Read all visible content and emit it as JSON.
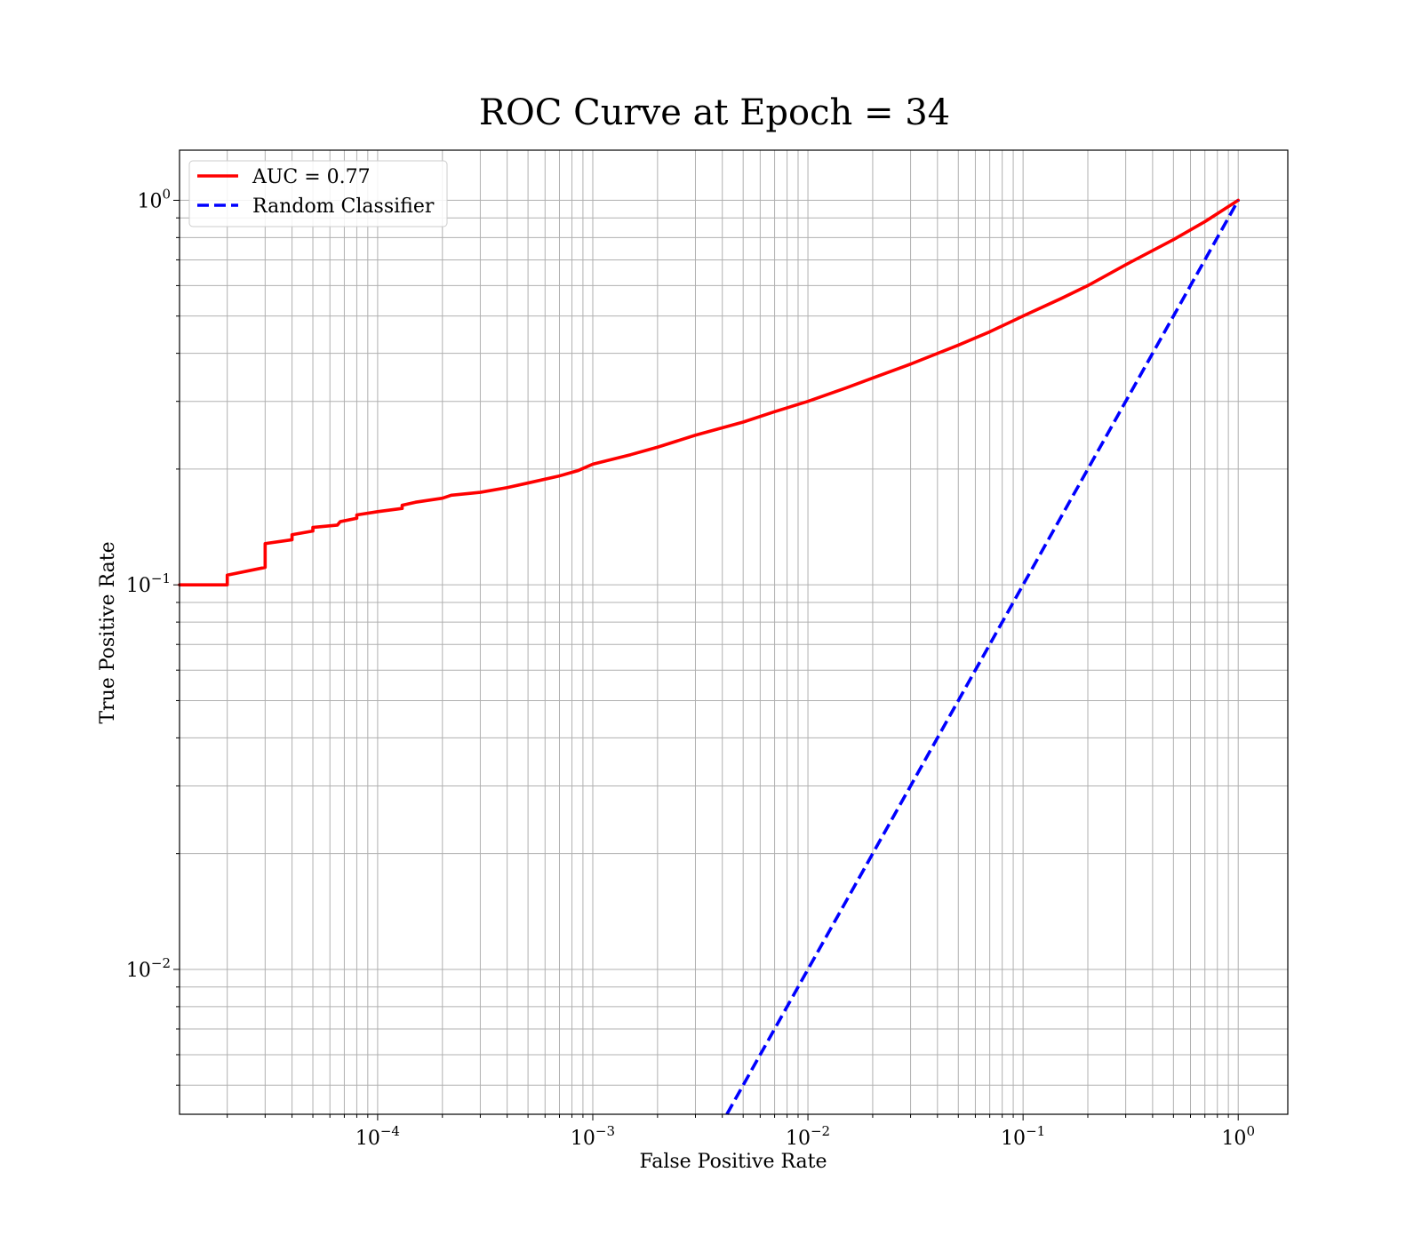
{
  "chart_data": {
    "type": "line",
    "title": "ROC Curve at Epoch = 34",
    "xlabel": "False Positive Rate",
    "ylabel": "True Positive Rate",
    "xscale": "log",
    "yscale": "log",
    "xlim": [
      1.2e-05,
      1.7
    ],
    "ylim": [
      0.0042,
      1.35
    ],
    "grid": true,
    "legend_position": "top-left",
    "x_ticks": [
      {
        "value": 0.0001,
        "base": "10",
        "exp": "−4"
      },
      {
        "value": 0.001,
        "base": "10",
        "exp": "−3"
      },
      {
        "value": 0.01,
        "base": "10",
        "exp": "−2"
      },
      {
        "value": 0.1,
        "base": "10",
        "exp": "−1"
      },
      {
        "value": 1,
        "base": "10",
        "exp": "0"
      }
    ],
    "y_ticks": [
      {
        "value": 0.01,
        "base": "10",
        "exp": "−2"
      },
      {
        "value": 0.1,
        "base": "10",
        "exp": "−1"
      },
      {
        "value": 1,
        "base": "10",
        "exp": "0"
      }
    ],
    "series": [
      {
        "name": "AUC = 0.77",
        "color": "#ff0000",
        "style": "solid",
        "points": [
          [
            1.2e-05,
            0.1
          ],
          [
            2e-05,
            0.1
          ],
          [
            2e-05,
            0.106
          ],
          [
            3e-05,
            0.111
          ],
          [
            3e-05,
            0.128
          ],
          [
            4e-05,
            0.131
          ],
          [
            4e-05,
            0.135
          ],
          [
            5e-05,
            0.138
          ],
          [
            5e-05,
            0.141
          ],
          [
            6.5e-05,
            0.143
          ],
          [
            6.7e-05,
            0.146
          ],
          [
            8e-05,
            0.149
          ],
          [
            8e-05,
            0.152
          ],
          [
            0.0001,
            0.155
          ],
          [
            0.00013,
            0.158
          ],
          [
            0.00013,
            0.161
          ],
          [
            0.00015,
            0.164
          ],
          [
            0.0002,
            0.168
          ],
          [
            0.00022,
            0.171
          ],
          [
            0.0003,
            0.174
          ],
          [
            0.0004,
            0.179
          ],
          [
            0.0005,
            0.184
          ],
          [
            0.0007,
            0.192
          ],
          [
            0.00085,
            0.198
          ],
          [
            0.001,
            0.206
          ],
          [
            0.0015,
            0.218
          ],
          [
            0.002,
            0.228
          ],
          [
            0.003,
            0.245
          ],
          [
            0.005,
            0.265
          ],
          [
            0.007,
            0.282
          ],
          [
            0.01,
            0.3
          ],
          [
            0.015,
            0.325
          ],
          [
            0.02,
            0.345
          ],
          [
            0.03,
            0.375
          ],
          [
            0.05,
            0.42
          ],
          [
            0.07,
            0.455
          ],
          [
            0.1,
            0.5
          ],
          [
            0.15,
            0.555
          ],
          [
            0.2,
            0.6
          ],
          [
            0.3,
            0.68
          ],
          [
            0.5,
            0.79
          ],
          [
            0.7,
            0.88
          ],
          [
            1.0,
            1.0
          ]
        ]
      },
      {
        "name": "Random Classifier",
        "color": "#0000ff",
        "style": "dashed",
        "points": [
          [
            0.0042,
            0.0042
          ],
          [
            1.0,
            1.0
          ]
        ]
      }
    ]
  }
}
